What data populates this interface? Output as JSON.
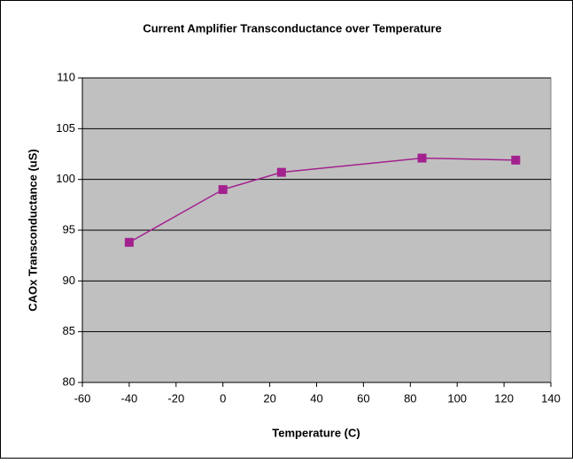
{
  "chart_data": {
    "type": "line",
    "title": "Current Amplifier Transconductance over Temperature",
    "x_label": "Temperature (C)",
    "y_label": "CAOx Transconductance (uS)",
    "x": [
      -40,
      0,
      25,
      85,
      125
    ],
    "series": [
      {
        "name": "CAOx Transconductance",
        "color": "#a3218e",
        "values": [
          93.8,
          99.0,
          100.7,
          102.1,
          101.9
        ]
      }
    ],
    "xlim": [
      -60,
      140
    ],
    "xticks": [
      -60,
      -40,
      -20,
      0,
      20,
      40,
      60,
      80,
      100,
      120,
      140
    ],
    "ylim": [
      80,
      110
    ],
    "yticks": [
      80,
      85,
      90,
      95,
      100,
      105,
      110
    ],
    "grid": true
  }
}
